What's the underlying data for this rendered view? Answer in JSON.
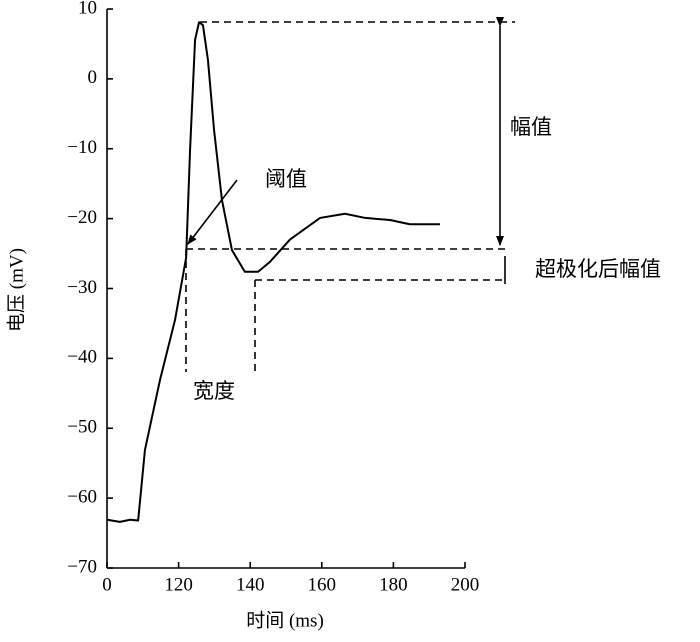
{
  "chart_data": {
    "type": "line",
    "xlabel": "时间 (ms)",
    "ylabel": "电压 (mV)",
    "x": [
      100,
      103.6,
      106.4,
      108.7,
      110.6,
      114.8,
      119,
      122.1,
      123.2,
      124.6,
      125.7,
      126.8,
      128.2,
      129.9,
      132.1,
      134.9,
      138.5,
      142.2,
      145.5,
      151.1,
      159.5,
      166.5,
      172.1,
      179.1,
      181.8,
      184.6,
      193
    ],
    "values": [
      -63.1,
      -63.4,
      -63.1,
      -63.2,
      -53.1,
      -43.1,
      -34.5,
      -25.6,
      -10.2,
      5.6,
      8.1,
      7.7,
      2.7,
      -7.3,
      -17.3,
      -24.5,
      -27.6,
      -27.6,
      -26.2,
      -23,
      -19.9,
      -19.3,
      -19.9,
      -20.2,
      -20.5,
      -20.8,
      -20.8
    ],
    "color": "#000000",
    "xlim": [
      100,
      200
    ],
    "xticks": [
      {
        "value": 100,
        "label": "0"
      },
      120,
      140,
      160,
      180,
      200
    ],
    "ylim": [
      -70,
      10
    ],
    "yticks": [
      {
        "value": -70,
        "label": "−70"
      },
      {
        "value": -60,
        "label": "−60"
      },
      {
        "value": -50,
        "label": "−50"
      },
      {
        "value": -40,
        "label": "−40"
      },
      {
        "value": -30,
        "label": "−30"
      },
      {
        "value": -20,
        "label": "−20"
      },
      {
        "value": -10,
        "label": "−10"
      },
      0,
      10
    ],
    "annotations": [
      "幅值",
      "阈值",
      "宽度",
      "超极化后幅值"
    ]
  }
}
